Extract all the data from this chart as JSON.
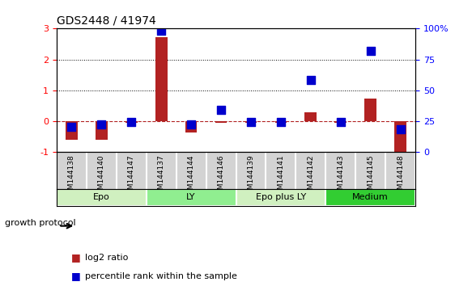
{
  "title": "GDS2448 / 41974",
  "samples": [
    "GSM144138",
    "GSM144140",
    "GSM144147",
    "GSM144137",
    "GSM144144",
    "GSM144146",
    "GSM144139",
    "GSM144141",
    "GSM144142",
    "GSM144143",
    "GSM144145",
    "GSM144148"
  ],
  "log2_ratio": [
    -0.62,
    -0.62,
    -0.05,
    2.72,
    -0.38,
    -0.07,
    -0.05,
    -0.05,
    0.28,
    -0.05,
    0.72,
    -1.05
  ],
  "percentile_rank": [
    20,
    22,
    24,
    98,
    22,
    34,
    24,
    24,
    58,
    24,
    82,
    18
  ],
  "bar_color": "#b22222",
  "dot_color": "#0000cd",
  "groups": [
    {
      "label": "Epo",
      "start": 0,
      "end": 3,
      "color": "#d0f0c0"
    },
    {
      "label": "LY",
      "start": 3,
      "end": 6,
      "color": "#90ee90"
    },
    {
      "label": "Epo plus LY",
      "start": 6,
      "end": 9,
      "color": "#d0f0c0"
    },
    {
      "label": "Medium",
      "start": 9,
      "end": 12,
      "color": "#32cd32"
    }
  ],
  "ylim_left": [
    -1,
    3
  ],
  "ylim_right": [
    0,
    100
  ],
  "yticks_left": [
    -1,
    0,
    1,
    2,
    3
  ],
  "yticks_right": [
    0,
    25,
    50,
    75,
    100
  ],
  "ylabel_right_labels": [
    "0",
    "25",
    "50",
    "75",
    "100%"
  ],
  "hlines": [
    2.0,
    1.0
  ],
  "hline_zero": 0,
  "background_color": "#ffffff",
  "legend_log2": "log2 ratio",
  "legend_pct": "percentile rank within the sample",
  "growth_protocol_label": "growth protocol",
  "bar_width": 0.4
}
